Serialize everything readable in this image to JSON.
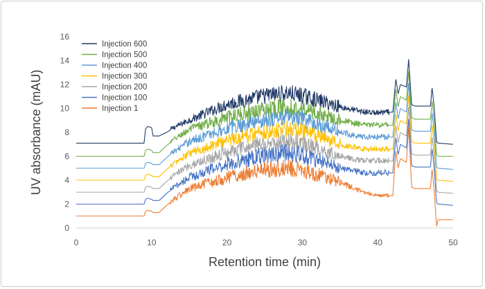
{
  "chart_data": {
    "type": "line",
    "title": "",
    "xlabel": "Retention time (min)",
    "ylabel": "UV absorbance (mAU)",
    "xlim": [
      0,
      50
    ],
    "ylim": [
      0,
      16
    ],
    "xticks": [
      0,
      10,
      20,
      30,
      40,
      50
    ],
    "yticks": [
      0,
      2,
      4,
      6,
      8,
      10,
      12,
      14,
      16
    ],
    "grid": false,
    "legend_position": "top-left",
    "series": [
      {
        "name": "Injection 600",
        "color": "#1f3864",
        "baseline": 7.1,
        "x": [
          0,
          9,
          9.2,
          9.5,
          10,
          10.2,
          11,
          12,
          13,
          15,
          20,
          25,
          28,
          30,
          35,
          38,
          40,
          42,
          42.4,
          42.7,
          43,
          43.8,
          44.1,
          44.5,
          45,
          47,
          47.2,
          47.5,
          47.8,
          48,
          50
        ],
        "y": [
          7.1,
          7.1,
          8.3,
          8.5,
          8.4,
          7.7,
          7.7,
          8.0,
          8.4,
          9.0,
          10.3,
          11.0,
          11.2,
          11.0,
          10.1,
          9.7,
          9.6,
          9.7,
          12.5,
          11.2,
          12.0,
          11.8,
          14.1,
          10.3,
          10.2,
          10.2,
          11.8,
          10.0,
          7.2,
          7.1,
          7.0
        ]
      },
      {
        "name": "Injection 500",
        "color": "#70ad47",
        "baseline": 6.0,
        "x": [
          0,
          9,
          9.2,
          9.5,
          10,
          10.2,
          11,
          12,
          13,
          15,
          20,
          25,
          28,
          30,
          35,
          38,
          40,
          42,
          42.4,
          42.7,
          43,
          43.8,
          44.1,
          44.5,
          45,
          47,
          47.2,
          47.5,
          47.8,
          48,
          50
        ],
        "y": [
          6.0,
          6.0,
          6.5,
          6.6,
          6.5,
          6.3,
          6.3,
          6.9,
          7.4,
          8.2,
          9.2,
          9.9,
          10.1,
          9.9,
          9.0,
          8.6,
          8.6,
          8.6,
          11.7,
          10.1,
          11.0,
          10.7,
          13.1,
          9.2,
          9.1,
          9.1,
          10.7,
          8.9,
          6.1,
          6.0,
          6.0
        ]
      },
      {
        "name": "Injection 400",
        "color": "#5b9bd5",
        "baseline": 5.0,
        "x": [
          0,
          9,
          9.2,
          9.5,
          10,
          10.2,
          11,
          12,
          13,
          15,
          20,
          25,
          28,
          30,
          35,
          38,
          40,
          42,
          42.4,
          42.7,
          43,
          43.8,
          44.1,
          44.5,
          45,
          47,
          47.2,
          47.5,
          47.8,
          48,
          50
        ],
        "y": [
          5.0,
          5.0,
          5.4,
          5.5,
          5.4,
          5.3,
          5.3,
          5.9,
          6.4,
          7.2,
          8.3,
          9.0,
          9.2,
          9.0,
          8.0,
          7.6,
          7.6,
          7.6,
          10.6,
          9.1,
          10.0,
          9.7,
          12.1,
          8.2,
          8.1,
          8.1,
          9.7,
          7.9,
          5.1,
          5.0,
          4.9
        ]
      },
      {
        "name": "Injection 300",
        "color": "#ffc000",
        "baseline": 4.0,
        "x": [
          0,
          9,
          9.2,
          9.5,
          10,
          10.2,
          11,
          12,
          13,
          15,
          20,
          25,
          28,
          30,
          35,
          38,
          40,
          42,
          42.4,
          42.7,
          43,
          43.8,
          44.1,
          44.5,
          45,
          47,
          47.2,
          47.5,
          47.8,
          48,
          50
        ],
        "y": [
          4.0,
          4.0,
          4.4,
          4.5,
          4.4,
          4.3,
          4.3,
          4.9,
          5.4,
          6.2,
          7.3,
          8.0,
          8.2,
          8.0,
          7.0,
          6.6,
          6.6,
          6.6,
          9.6,
          8.1,
          9.0,
          8.7,
          11.1,
          7.2,
          7.1,
          7.1,
          8.7,
          6.9,
          4.1,
          4.0,
          3.9
        ]
      },
      {
        "name": "Injection 200",
        "color": "#a5a5a5",
        "baseline": 3.0,
        "x": [
          0,
          9,
          9.2,
          9.5,
          10,
          10.2,
          11,
          12,
          13,
          15,
          20,
          25,
          28,
          30,
          35,
          38,
          40,
          42,
          42.4,
          42.7,
          43,
          43.8,
          44.1,
          44.5,
          45,
          47,
          47.2,
          47.5,
          47.8,
          48,
          50
        ],
        "y": [
          3.0,
          3.0,
          3.4,
          3.5,
          3.4,
          3.3,
          3.3,
          3.9,
          4.4,
          5.2,
          6.3,
          7.0,
          7.2,
          7.0,
          6.0,
          5.6,
          5.6,
          5.6,
          8.6,
          7.1,
          8.0,
          7.7,
          10.1,
          6.2,
          6.1,
          6.1,
          7.7,
          5.9,
          3.1,
          3.0,
          2.9
        ]
      },
      {
        "name": "Injection 100",
        "color": "#4472c4",
        "baseline": 2.0,
        "x": [
          0,
          9,
          9.2,
          9.5,
          10,
          10.2,
          11,
          12,
          13,
          15,
          20,
          25,
          28,
          30,
          35,
          38,
          40,
          42,
          42.4,
          42.7,
          43,
          43.8,
          44.1,
          44.5,
          45,
          47,
          47.2,
          47.5,
          47.8,
          48,
          50
        ],
        "y": [
          2.0,
          2.0,
          2.4,
          2.5,
          2.4,
          2.3,
          2.3,
          2.9,
          3.4,
          4.2,
          5.3,
          6.0,
          6.2,
          6.0,
          5.0,
          4.6,
          4.6,
          4.6,
          7.6,
          6.1,
          7.0,
          6.7,
          9.1,
          5.2,
          5.1,
          5.1,
          6.7,
          4.9,
          2.1,
          2.0,
          1.9
        ]
      },
      {
        "name": "Injection 1",
        "color": "#ed7d31",
        "baseline": 1.0,
        "x": [
          0,
          9,
          9.2,
          9.5,
          10,
          10.2,
          11,
          12,
          13,
          15,
          20,
          25,
          28,
          30,
          35,
          38,
          40,
          42,
          42.4,
          42.7,
          43,
          43.8,
          44.1,
          44.5,
          45,
          47,
          47.2,
          47.5,
          47.8,
          48,
          50
        ],
        "y": [
          1.0,
          1.0,
          1.4,
          1.5,
          1.4,
          1.3,
          1.3,
          1.9,
          2.4,
          3.2,
          4.2,
          4.8,
          5.0,
          4.8,
          3.8,
          3.0,
          2.7,
          2.7,
          6.5,
          5.0,
          5.8,
          5.5,
          8.4,
          3.4,
          3.3,
          3.3,
          5.0,
          3.0,
          0.1,
          0.7,
          0.7
        ]
      }
    ]
  }
}
